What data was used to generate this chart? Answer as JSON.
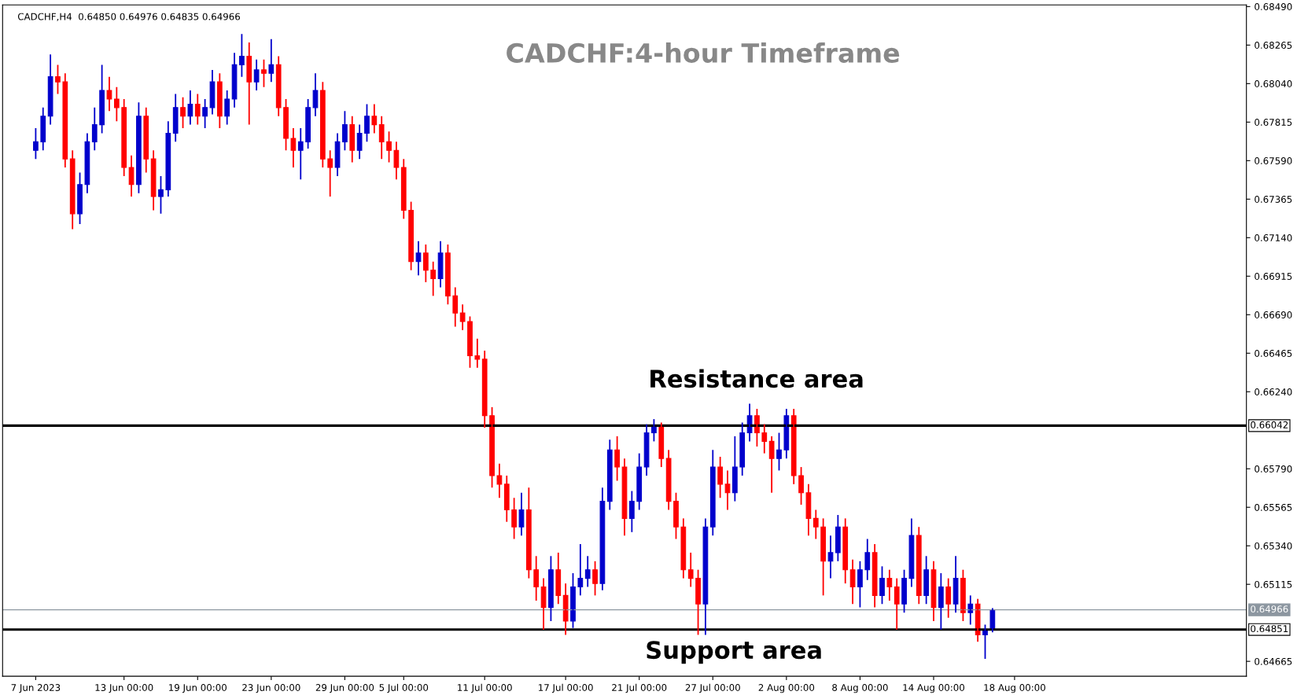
{
  "chart_data": {
    "type": "candlestick",
    "title": "CADCHF:4-hour Timeframe",
    "annotations": [
      "CADCHF,H4  0.64850 0.64976 0.64835 0.64966",
      "Resistance area",
      "Support area"
    ],
    "categories": [
      "7 Jun 2023",
      null,
      null,
      null,
      null,
      null,
      null,
      null,
      null,
      null,
      null,
      null,
      "13 Jun 00:00",
      null,
      null,
      null,
      null,
      null,
      null,
      null,
      null,
      null,
      "19 Jun 00:00",
      null,
      null,
      null,
      null,
      null,
      null,
      null,
      null,
      null,
      "23 Jun 00:00",
      null,
      null,
      null,
      null,
      null,
      null,
      null,
      null,
      null,
      "29 Jun 00:00",
      null,
      null,
      null,
      null,
      null,
      null,
      null,
      "5 Jul 00:00",
      null,
      null,
      null,
      null,
      null,
      null,
      null,
      null,
      null,
      null,
      "11 Jul 00:00",
      null,
      null,
      null,
      null,
      null,
      null,
      null,
      null,
      null,
      null,
      "17 Jul 00:00",
      null,
      null,
      null,
      null,
      null,
      null,
      null,
      null,
      null,
      "21 Jul 00:00",
      null,
      null,
      null,
      null,
      null,
      null,
      null,
      null,
      null,
      "27 Jul 00:00",
      null,
      null,
      null,
      null,
      null,
      null,
      null,
      null,
      null,
      "2 Aug 00:00",
      null,
      null,
      null,
      null,
      null,
      null,
      null,
      null,
      null,
      "8 Aug 00:00",
      null,
      null,
      null,
      null,
      null,
      null,
      null,
      null,
      null,
      "14 Aug 00:00",
      null,
      null,
      null,
      null,
      null,
      null,
      null,
      null,
      null,
      null,
      "18 Aug 00:00",
      null,
      null,
      null,
      null,
      null,
      null,
      null,
      null,
      null,
      null,
      null,
      null,
      null,
      null,
      null,
      null,
      null,
      null,
      null,
      null,
      null,
      null,
      null,
      null,
      null,
      null,
      null,
      null,
      null,
      null,
      null
    ],
    "ohlc": [
      [
        0.6765,
        0.6778,
        0.676,
        0.677
      ],
      [
        0.677,
        0.679,
        0.6765,
        0.6785
      ],
      [
        0.6785,
        0.6821,
        0.678,
        0.6808
      ],
      [
        0.6808,
        0.6815,
        0.6798,
        0.6805
      ],
      [
        0.6805,
        0.681,
        0.6755,
        0.676
      ],
      [
        0.676,
        0.6765,
        0.6719,
        0.6728
      ],
      [
        0.6728,
        0.6752,
        0.6722,
        0.6745
      ],
      [
        0.6745,
        0.6775,
        0.674,
        0.677
      ],
      [
        0.677,
        0.679,
        0.6765,
        0.678
      ],
      [
        0.678,
        0.6815,
        0.6775,
        0.68
      ],
      [
        0.68,
        0.6808,
        0.6788,
        0.6795
      ],
      [
        0.6795,
        0.6802,
        0.6782,
        0.679
      ],
      [
        0.679,
        0.6795,
        0.675,
        0.6755
      ],
      [
        0.6755,
        0.6762,
        0.6738,
        0.6745
      ],
      [
        0.6745,
        0.6793,
        0.674,
        0.6785
      ],
      [
        0.6785,
        0.679,
        0.6752,
        0.676
      ],
      [
        0.676,
        0.6765,
        0.673,
        0.6738
      ],
      [
        0.6738,
        0.675,
        0.6728,
        0.6742
      ],
      [
        0.6742,
        0.6782,
        0.6738,
        0.6775
      ],
      [
        0.6775,
        0.6798,
        0.677,
        0.679
      ],
      [
        0.679,
        0.6796,
        0.6778,
        0.6785
      ],
      [
        0.6785,
        0.68,
        0.678,
        0.6792
      ],
      [
        0.6792,
        0.6798,
        0.678,
        0.6785
      ],
      [
        0.6785,
        0.6795,
        0.6778,
        0.679
      ],
      [
        0.679,
        0.6812,
        0.6786,
        0.6805
      ],
      [
        0.6805,
        0.681,
        0.6778,
        0.6785
      ],
      [
        0.6785,
        0.68,
        0.678,
        0.6795
      ],
      [
        0.6795,
        0.6822,
        0.679,
        0.6815
      ],
      [
        0.6815,
        0.6833,
        0.6808,
        0.682
      ],
      [
        0.682,
        0.6828,
        0.678,
        0.6805
      ],
      [
        0.6805,
        0.6818,
        0.68,
        0.6812
      ],
      [
        0.6812,
        0.6818,
        0.6802,
        0.681
      ],
      [
        0.681,
        0.683,
        0.6805,
        0.6815
      ],
      [
        0.6815,
        0.682,
        0.6785,
        0.679
      ],
      [
        0.679,
        0.6795,
        0.6765,
        0.6772
      ],
      [
        0.6772,
        0.6778,
        0.6755,
        0.6765
      ],
      [
        0.6765,
        0.6778,
        0.6748,
        0.677
      ],
      [
        0.677,
        0.6795,
        0.6766,
        0.679
      ],
      [
        0.679,
        0.681,
        0.6785,
        0.68
      ],
      [
        0.68,
        0.6805,
        0.6755,
        0.676
      ],
      [
        0.676,
        0.6765,
        0.6738,
        0.6755
      ],
      [
        0.6755,
        0.6775,
        0.675,
        0.677
      ],
      [
        0.677,
        0.6788,
        0.6765,
        0.678
      ],
      [
        0.678,
        0.6785,
        0.6758,
        0.6765
      ],
      [
        0.6765,
        0.678,
        0.676,
        0.6775
      ],
      [
        0.6775,
        0.6792,
        0.677,
        0.6785
      ],
      [
        0.6785,
        0.6792,
        0.6775,
        0.678
      ],
      [
        0.678,
        0.6785,
        0.676,
        0.677
      ],
      [
        0.677,
        0.6776,
        0.6758,
        0.6765
      ],
      [
        0.6765,
        0.677,
        0.6748,
        0.6755
      ],
      [
        0.6755,
        0.676,
        0.6725,
        0.673
      ],
      [
        0.673,
        0.6735,
        0.6695,
        0.67
      ],
      [
        0.67,
        0.6712,
        0.6692,
        0.6705
      ],
      [
        0.6705,
        0.671,
        0.6688,
        0.6695
      ],
      [
        0.6695,
        0.67,
        0.668,
        0.669
      ],
      [
        0.669,
        0.6712,
        0.6685,
        0.6705
      ],
      [
        0.6705,
        0.671,
        0.6675,
        0.668
      ],
      [
        0.668,
        0.6685,
        0.6662,
        0.667
      ],
      [
        0.667,
        0.6675,
        0.666,
        0.6665
      ],
      [
        0.6665,
        0.6668,
        0.6638,
        0.6645
      ],
      [
        0.6645,
        0.6655,
        0.6638,
        0.6643
      ],
      [
        0.6643,
        0.6648,
        0.6603,
        0.661
      ],
      [
        0.661,
        0.6615,
        0.6568,
        0.6575
      ],
      [
        0.6575,
        0.6582,
        0.6562,
        0.657
      ],
      [
        0.657,
        0.6575,
        0.6548,
        0.6555
      ],
      [
        0.6555,
        0.6562,
        0.6538,
        0.6545
      ],
      [
        0.6545,
        0.6565,
        0.654,
        0.6555
      ],
      [
        0.6555,
        0.6568,
        0.6515,
        0.652
      ],
      [
        0.652,
        0.6528,
        0.6502,
        0.651
      ],
      [
        0.651,
        0.6515,
        0.6485,
        0.6498
      ],
      [
        0.6498,
        0.6528,
        0.649,
        0.652
      ],
      [
        0.652,
        0.653,
        0.65,
        0.6505
      ],
      [
        0.6505,
        0.6512,
        0.6482,
        0.649
      ],
      [
        0.649,
        0.6518,
        0.6486,
        0.651
      ],
      [
        0.651,
        0.6535,
        0.6505,
        0.6515
      ],
      [
        0.6515,
        0.6528,
        0.651,
        0.652
      ],
      [
        0.652,
        0.6525,
        0.6505,
        0.6512
      ],
      [
        0.6512,
        0.6568,
        0.6508,
        0.656
      ],
      [
        0.656,
        0.6596,
        0.6555,
        0.659
      ],
      [
        0.659,
        0.6598,
        0.6572,
        0.658
      ],
      [
        0.658,
        0.6585,
        0.654,
        0.655
      ],
      [
        0.655,
        0.6566,
        0.6542,
        0.656
      ],
      [
        0.656,
        0.6588,
        0.6555,
        0.658
      ],
      [
        0.658,
        0.6605,
        0.6575,
        0.66
      ],
      [
        0.66,
        0.6608,
        0.6595,
        0.6604
      ],
      [
        0.6604,
        0.6606,
        0.658,
        0.6585
      ],
      [
        0.6585,
        0.659,
        0.6555,
        0.656
      ],
      [
        0.656,
        0.6565,
        0.6538,
        0.6545
      ],
      [
        0.6545,
        0.655,
        0.6515,
        0.652
      ],
      [
        0.652,
        0.653,
        0.651,
        0.6515
      ],
      [
        0.6515,
        0.652,
        0.6482,
        0.65
      ],
      [
        0.65,
        0.655,
        0.6482,
        0.6545
      ],
      [
        0.6545,
        0.659,
        0.654,
        0.658
      ],
      [
        0.658,
        0.6586,
        0.6562,
        0.657
      ],
      [
        0.657,
        0.6578,
        0.6555,
        0.6565
      ],
      [
        0.6565,
        0.6598,
        0.656,
        0.658
      ],
      [
        0.658,
        0.6606,
        0.6575,
        0.66
      ],
      [
        0.66,
        0.6617,
        0.6595,
        0.661
      ],
      [
        0.661,
        0.6614,
        0.6592,
        0.66
      ],
      [
        0.66,
        0.6605,
        0.6588,
        0.6595
      ],
      [
        0.6595,
        0.6598,
        0.6565,
        0.6585
      ],
      [
        0.6585,
        0.66,
        0.6578,
        0.659
      ],
      [
        0.659,
        0.6614,
        0.6585,
        0.661
      ],
      [
        0.661,
        0.6614,
        0.657,
        0.6575
      ],
      [
        0.6575,
        0.658,
        0.6558,
        0.6565
      ],
      [
        0.6565,
        0.657,
        0.654,
        0.655
      ],
      [
        0.655,
        0.6555,
        0.6538,
        0.6545
      ],
      [
        0.6545,
        0.655,
        0.6505,
        0.6525
      ],
      [
        0.6525,
        0.654,
        0.6515,
        0.653
      ],
      [
        0.653,
        0.6552,
        0.6525,
        0.6545
      ],
      [
        0.6545,
        0.655,
        0.6512,
        0.652
      ],
      [
        0.652,
        0.6526,
        0.65,
        0.651
      ],
      [
        0.651,
        0.6525,
        0.6498,
        0.652
      ],
      [
        0.652,
        0.6538,
        0.6514,
        0.653
      ],
      [
        0.653,
        0.6535,
        0.6498,
        0.6505
      ],
      [
        0.6505,
        0.6522,
        0.65,
        0.6515
      ],
      [
        0.6515,
        0.652,
        0.6502,
        0.651
      ],
      [
        0.651,
        0.6515,
        0.6485,
        0.65
      ],
      [
        0.65,
        0.652,
        0.6495,
        0.6515
      ],
      [
        0.6515,
        0.655,
        0.651,
        0.654
      ],
      [
        0.654,
        0.6545,
        0.65,
        0.6505
      ],
      [
        0.6505,
        0.6528,
        0.65,
        0.652
      ],
      [
        0.652,
        0.6525,
        0.649,
        0.6498
      ],
      [
        0.6498,
        0.6518,
        0.6485,
        0.651
      ],
      [
        0.651,
        0.6515,
        0.6492,
        0.65
      ],
      [
        0.65,
        0.6528,
        0.6495,
        0.6515
      ],
      [
        0.6515,
        0.652,
        0.649,
        0.6495
      ],
      [
        0.6495,
        0.6505,
        0.6488,
        0.65
      ],
      [
        0.65,
        0.6503,
        0.6478,
        0.6482
      ],
      [
        0.6482,
        0.6488,
        0.6468,
        0.6485
      ],
      [
        0.6485,
        0.64976,
        0.64835,
        0.64966
      ],
      null,
      null,
      null,
      null,
      null,
      null,
      null,
      null,
      null,
      null,
      null,
      null,
      null,
      null,
      null,
      null,
      null,
      null,
      null,
      null,
      null,
      null,
      null,
      null,
      null,
      null,
      null,
      null,
      null,
      null,
      null,
      null,
      null,
      null
    ],
    "colors": [
      "#0000cc",
      "#0000cc",
      "#0000cc",
      "#ff0000",
      "#ff0000",
      "#ff0000",
      "#0000cc",
      "#0000cc",
      "#0000cc",
      "#0000cc",
      "#ff0000",
      "#ff0000",
      "#ff0000",
      "#ff0000",
      "#0000cc",
      "#ff0000",
      "#ff0000",
      "#0000cc",
      "#0000cc",
      "#0000cc",
      "#ff0000",
      "#0000cc",
      "#ff0000",
      "#0000cc",
      "#0000cc",
      "#ff0000",
      "#0000cc",
      "#0000cc",
      "#0000cc",
      "#ff0000",
      "#0000cc",
      "#ff0000",
      "#0000cc",
      "#ff0000",
      "#ff0000",
      "#ff0000",
      "#0000cc",
      "#0000cc",
      "#0000cc",
      "#ff0000",
      "#ff0000",
      "#0000cc",
      "#0000cc",
      "#ff0000",
      "#0000cc",
      "#0000cc",
      "#ff0000",
      "#ff0000",
      "#ff0000",
      "#ff0000",
      "#ff0000",
      "#ff0000",
      "#0000cc",
      "#ff0000",
      "#ff0000",
      "#0000cc",
      "#ff0000",
      "#ff0000",
      "#ff0000",
      "#ff0000",
      "#ff0000",
      "#ff0000",
      "#ff0000",
      "#ff0000",
      "#ff0000",
      "#ff0000",
      "#0000cc",
      "#ff0000",
      "#ff0000",
      "#ff0000",
      "#0000cc",
      "#ff0000",
      "#ff0000",
      "#0000cc",
      "#0000cc",
      "#0000cc",
      "#ff0000",
      "#0000cc",
      "#0000cc",
      "#ff0000",
      "#ff0000",
      "#0000cc",
      "#0000cc",
      "#0000cc",
      "#0000cc",
      "#ff0000",
      "#ff0000",
      "#ff0000",
      "#ff0000",
      "#ff0000",
      "#ff0000",
      "#0000cc",
      "#0000cc",
      "#ff0000",
      "#ff0000",
      "#0000cc",
      "#0000cc",
      "#0000cc",
      "#ff0000",
      "#ff0000",
      "#ff0000",
      "#0000cc",
      "#0000cc",
      "#ff0000",
      "#ff0000",
      "#ff0000",
      "#ff0000",
      "#ff0000",
      "#0000cc",
      "#0000cc",
      "#ff0000",
      "#ff0000",
      "#0000cc",
      "#0000cc",
      "#ff0000",
      "#0000cc",
      "#ff0000",
      "#ff0000",
      "#0000cc",
      "#0000cc",
      "#ff0000",
      "#0000cc",
      "#ff0000",
      "#0000cc",
      "#ff0000",
      "#0000cc",
      "#ff0000",
      "#0000cc",
      "#ff0000",
      "#0000cc",
      "#0000cc",
      null,
      null,
      null,
      null,
      null,
      null,
      null,
      null,
      null,
      null,
      null,
      null,
      null,
      null,
      null,
      null,
      null,
      null,
      null,
      null,
      null,
      null,
      null,
      null,
      null,
      null,
      null,
      null,
      null,
      null,
      null,
      null,
      null,
      null
    ],
    "ylim": [
      0.64578,
      0.685
    ],
    "yticks": [
      {
        "value": 0.6849,
        "label": "0.68490"
      },
      {
        "value": 0.68265,
        "label": "0.68265"
      },
      {
        "value": 0.6804,
        "label": "0.68040"
      },
      {
        "value": 0.67815,
        "label": "0.67815"
      },
      {
        "value": 0.6759,
        "label": "0.67590"
      },
      {
        "value": 0.67365,
        "label": "0.67365"
      },
      {
        "value": 0.6714,
        "label": "0.67140"
      },
      {
        "value": 0.66915,
        "label": "0.66915"
      },
      {
        "value": 0.6669,
        "label": "0.66690"
      },
      {
        "value": 0.66465,
        "label": "0.66465"
      },
      {
        "value": 0.6624,
        "label": "0.66240"
      },
      {
        "value": 0.6579,
        "label": "0.65790"
      },
      {
        "value": 0.65565,
        "label": "0.65565"
      },
      {
        "value": 0.6534,
        "label": "0.65340"
      },
      {
        "value": 0.65115,
        "label": "0.65115"
      },
      {
        "value": 0.64665,
        "label": "0.64665"
      }
    ],
    "ref_lines": [
      {
        "axis": "y",
        "value": 0.66042,
        "label": "0.66042",
        "color": "#000000"
      },
      {
        "axis": "y",
        "value": 0.64851,
        "label": "0.64851",
        "color": "#000000"
      },
      {
        "axis": "y",
        "value": 0.64966,
        "label": "0.64966",
        "color": "#8c96a0"
      }
    ],
    "grid": false,
    "legend": false
  }
}
